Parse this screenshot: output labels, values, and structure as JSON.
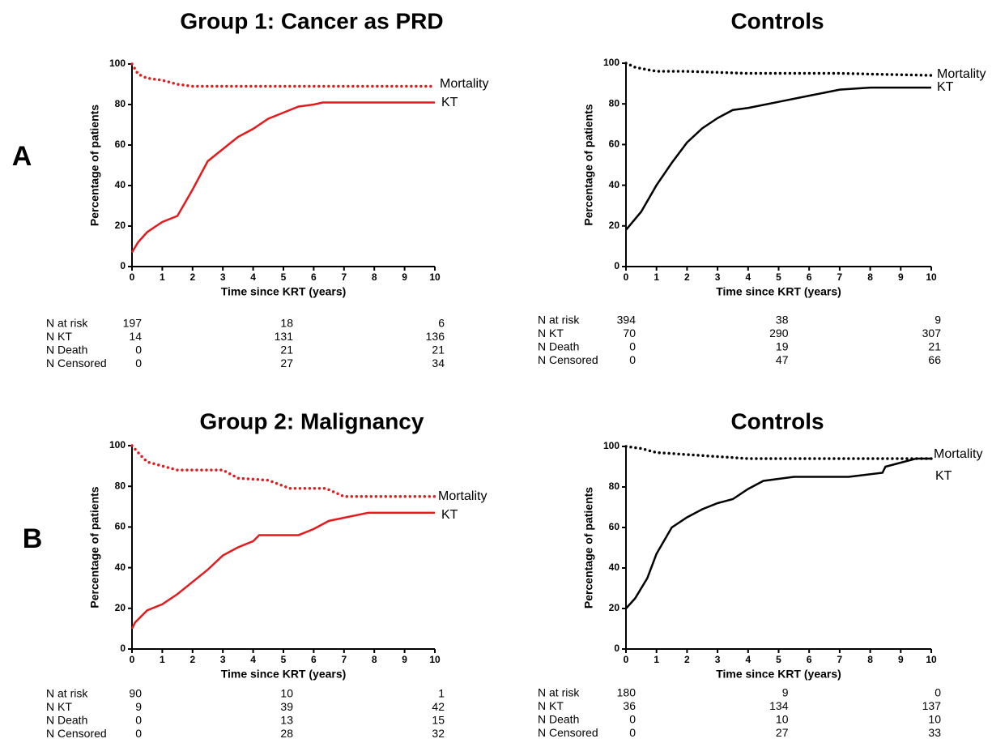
{
  "panel_labels": [
    "A",
    "B"
  ],
  "chart_data": [
    {
      "type": "line",
      "title": "Group 1: Cancer as PRD",
      "x_label": "Time since KRT (years)",
      "y_label": "Percentage of patients",
      "xlim": [
        0,
        10
      ],
      "ylim": [
        0,
        100
      ],
      "xticks": [
        0,
        1,
        2,
        3,
        4,
        5,
        6,
        7,
        8,
        9,
        10
      ],
      "yticks": [
        0,
        20,
        40,
        60,
        80,
        100
      ],
      "series": [
        {
          "name": "Mortality",
          "color": "#e41a1c",
          "dash": "dotted",
          "x": [
            0,
            0.2,
            0.5,
            1,
            1.5,
            2,
            3,
            10
          ],
          "values": [
            100,
            95,
            93,
            92,
            90,
            89,
            89,
            89
          ]
        },
        {
          "name": "KT",
          "color": "#e41a1c",
          "dash": "solid",
          "x": [
            0,
            0.2,
            0.5,
            1,
            1.5,
            2,
            2.5,
            3,
            3.5,
            4,
            4.5,
            5,
            5.5,
            6,
            6.3,
            10
          ],
          "values": [
            7,
            12,
            17,
            22,
            25,
            38,
            52,
            58,
            64,
            68,
            73,
            76,
            79,
            80,
            81,
            81
          ]
        }
      ],
      "risk_table": [
        {
          "label": "N at risk",
          "values": [
            197,
            18,
            6
          ]
        },
        {
          "label": "N KT",
          "values": [
            14,
            131,
            136
          ]
        },
        {
          "label": "N Death",
          "values": [
            0,
            21,
            21
          ]
        },
        {
          "label": "N Censored",
          "values": [
            0,
            27,
            34
          ]
        }
      ]
    },
    {
      "type": "line",
      "title": "Controls",
      "x_label": "Time since KRT (years)",
      "y_label": "Percentage of patients",
      "xlim": [
        0,
        10
      ],
      "ylim": [
        0,
        100
      ],
      "xticks": [
        0,
        1,
        2,
        3,
        4,
        5,
        6,
        7,
        8,
        9,
        10
      ],
      "yticks": [
        0,
        20,
        40,
        60,
        80,
        100
      ],
      "series": [
        {
          "name": "Mortality",
          "color": "#000000",
          "dash": "dotted",
          "x": [
            0,
            0.3,
            1,
            2,
            4,
            7,
            10
          ],
          "values": [
            100,
            98,
            96,
            96,
            95,
            95,
            94
          ]
        },
        {
          "name": "KT",
          "color": "#000000",
          "dash": "solid",
          "x": [
            0,
            0.5,
            1,
            1.5,
            2,
            2.5,
            3,
            3.5,
            4,
            5,
            6,
            7,
            8,
            9,
            10
          ],
          "values": [
            18,
            27,
            40,
            51,
            61,
            68,
            73,
            77,
            78,
            81,
            84,
            87,
            88,
            88,
            88
          ]
        }
      ],
      "risk_table": [
        {
          "label": "N at risk",
          "values": [
            394,
            38,
            9
          ]
        },
        {
          "label": "N KT",
          "values": [
            70,
            290,
            307
          ]
        },
        {
          "label": "N Death",
          "values": [
            0,
            19,
            21
          ]
        },
        {
          "label": "N Censored",
          "values": [
            0,
            47,
            66
          ]
        }
      ]
    },
    {
      "type": "line",
      "title": "Group 2: Malignancy",
      "x_label": "Time since KRT (years)",
      "y_label": "Percentage of patients",
      "xlim": [
        0,
        10
      ],
      "ylim": [
        0,
        100
      ],
      "xticks": [
        0,
        1,
        2,
        3,
        4,
        5,
        6,
        7,
        8,
        9,
        10
      ],
      "yticks": [
        0,
        20,
        40,
        60,
        80,
        100
      ],
      "series": [
        {
          "name": "Mortality",
          "color": "#e41a1c",
          "dash": "dotted",
          "x": [
            0,
            0.3,
            0.5,
            1,
            1.5,
            2,
            3,
            3.5,
            4.5,
            5.2,
            6.4,
            7,
            10
          ],
          "values": [
            100,
            95,
            92,
            90,
            88,
            88,
            88,
            84,
            83,
            79,
            79,
            75,
            75
          ]
        },
        {
          "name": "KT",
          "color": "#e41a1c",
          "dash": "solid",
          "x": [
            0,
            0.1,
            0.5,
            1,
            1.5,
            2,
            2.5,
            3,
            3.5,
            4,
            4.2,
            5.5,
            6,
            6.5,
            7.8,
            10
          ],
          "values": [
            10,
            13,
            19,
            22,
            27,
            33,
            39,
            46,
            50,
            53,
            56,
            56,
            59,
            63,
            67,
            67
          ]
        }
      ],
      "risk_table": [
        {
          "label": "N at risk",
          "values": [
            90,
            10,
            1
          ]
        },
        {
          "label": "N KT",
          "values": [
            9,
            39,
            42
          ]
        },
        {
          "label": "N Death",
          "values": [
            0,
            13,
            15
          ]
        },
        {
          "label": "N Censored",
          "values": [
            0,
            28,
            32
          ]
        }
      ]
    },
    {
      "type": "line",
      "title": "Controls",
      "x_label": "Time since KRT (years)",
      "y_label": "Percentage of patients",
      "xlim": [
        0,
        10
      ],
      "ylim": [
        0,
        100
      ],
      "xticks": [
        0,
        1,
        2,
        3,
        4,
        5,
        6,
        7,
        8,
        9,
        10
      ],
      "yticks": [
        0,
        20,
        40,
        60,
        80,
        100
      ],
      "series": [
        {
          "name": "Mortality",
          "color": "#000000",
          "dash": "dotted",
          "x": [
            0,
            0.5,
            1,
            2,
            3,
            4,
            10
          ],
          "values": [
            100,
            99,
            97,
            96,
            95,
            94,
            94
          ]
        },
        {
          "name": "KT",
          "color": "#000000",
          "dash": "solid",
          "x": [
            0,
            0.3,
            0.7,
            1,
            1.5,
            2,
            2.5,
            3,
            3.5,
            4,
            4.5,
            5.5,
            7.3,
            8.4,
            8.5,
            9.5,
            10
          ],
          "values": [
            20,
            25,
            35,
            47,
            60,
            65,
            69,
            72,
            74,
            79,
            83,
            85,
            85,
            87,
            90,
            94,
            94
          ]
        }
      ],
      "risk_table": [
        {
          "label": "N at risk",
          "values": [
            180,
            9,
            0
          ]
        },
        {
          "label": "N KT",
          "values": [
            36,
            134,
            137
          ]
        },
        {
          "label": "N Death",
          "values": [
            0,
            10,
            10
          ]
        },
        {
          "label": "N Censored",
          "values": [
            0,
            27,
            33
          ]
        }
      ]
    }
  ]
}
